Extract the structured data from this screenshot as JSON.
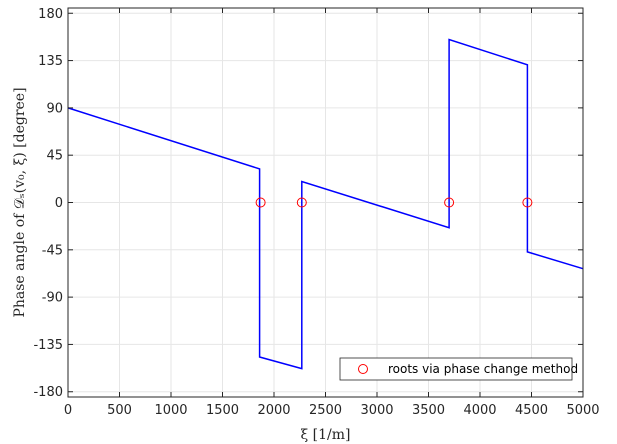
{
  "chart_data": {
    "type": "line",
    "xlabel": "ξ [1/m]",
    "ylabel": "Phase angle of 𝒟ₛ(v₀, ξ) [degree]",
    "xlim": [
      0,
      5000
    ],
    "ylim": [
      -185,
      185
    ],
    "xticks": [
      0,
      500,
      1000,
      1500,
      2000,
      2500,
      3000,
      3500,
      4000,
      4500,
      5000
    ],
    "yticks": [
      -180,
      -135,
      -90,
      -45,
      0,
      45,
      90,
      135,
      180
    ],
    "grid": true,
    "legend_position": "bottom-right",
    "series": [
      {
        "type": "line",
        "color": "#0000ff",
        "x": [
          0,
          1860,
          1860,
          2270,
          2270,
          3700,
          3700,
          4460,
          4460,
          5000
        ],
        "y": [
          90,
          32,
          -147,
          -158,
          20,
          -24,
          155,
          131,
          -47,
          -63
        ]
      },
      {
        "name": "roots via phase change method",
        "type": "scatter",
        "marker": "circle-open",
        "color": "#ff0000",
        "x": [
          1870,
          2270,
          3700,
          4460
        ],
        "y": [
          0,
          0,
          0,
          0
        ]
      }
    ]
  }
}
